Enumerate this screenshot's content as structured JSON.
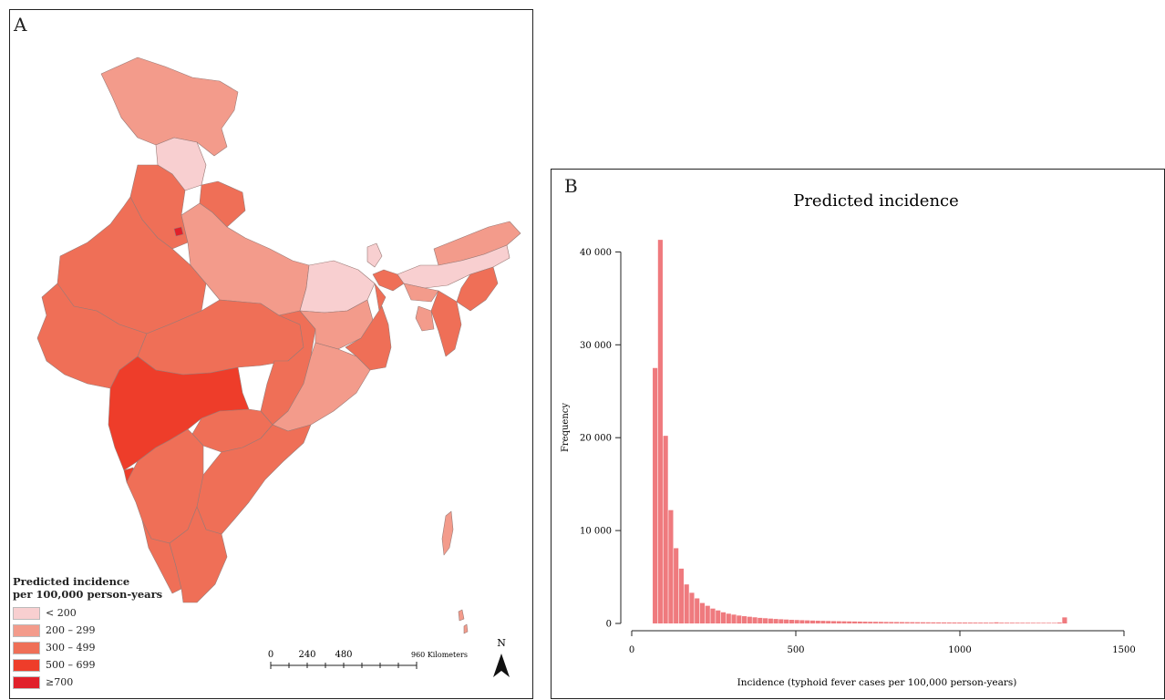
{
  "panel_a": {
    "letter": "A",
    "legend": {
      "title_line1": "Predicted incidence",
      "title_line2": "per 100,000 person-years",
      "items": [
        {
          "label": "< 200",
          "color": "#f8cfd0"
        },
        {
          "label": "200 – 299",
          "color": "#f39b8b"
        },
        {
          "label": "300 – 499",
          "color": "#ef6f57"
        },
        {
          "label": "500 – 699",
          "color": "#ee3d2a"
        },
        {
          "label": "≥700",
          "color": "#e1202a"
        }
      ]
    },
    "scale": {
      "ticks": [
        "0",
        "240",
        "480",
        "960 Kilometers"
      ]
    },
    "north_label": "N"
  },
  "panel_b": {
    "letter": "B"
  },
  "chart_data": {
    "type": "bar",
    "title": "Predicted incidence",
    "xlabel": "Incidence (typhoid fever cases per 100,000 person-years)",
    "ylabel": "Frequency",
    "xlim": [
      0,
      1500
    ],
    "ylim": [
      0,
      42000
    ],
    "x_ticks": [
      0,
      500,
      1000,
      1500
    ],
    "y_ticks": [
      0,
      10000,
      20000,
      30000,
      40000
    ],
    "y_tick_labels": [
      "0",
      "10 000",
      "20 000",
      "30 000",
      "40 000"
    ],
    "bar_color": "#ef7a7e",
    "bin_width": 16,
    "bin_starts": [
      64,
      80,
      96,
      112,
      128,
      144,
      160,
      176,
      192,
      208,
      224,
      240,
      256,
      272,
      288,
      304,
      320,
      336,
      352,
      368,
      384,
      400,
      416,
      432,
      448,
      464,
      480,
      496,
      512,
      528,
      544,
      560,
      576,
      592,
      608,
      624,
      640,
      656,
      672,
      688,
      704,
      720,
      736,
      752,
      768,
      784,
      800,
      816,
      832,
      848,
      864,
      880,
      896,
      912,
      928,
      944,
      960,
      976,
      992,
      1008,
      1024,
      1040,
      1056,
      1072,
      1088,
      1104,
      1120,
      1136,
      1152,
      1168,
      1184,
      1200,
      1216,
      1232,
      1248,
      1264,
      1280,
      1296,
      1312
    ],
    "values": [
      27500,
      41300,
      20200,
      12200,
      8100,
      5900,
      4200,
      3300,
      2700,
      2200,
      1900,
      1600,
      1400,
      1200,
      1050,
      950,
      850,
      780,
      720,
      660,
      600,
      560,
      520,
      480,
      450,
      420,
      390,
      370,
      350,
      330,
      310,
      295,
      280,
      265,
      250,
      240,
      230,
      220,
      210,
      200,
      190,
      180,
      175,
      170,
      160,
      155,
      150,
      145,
      140,
      135,
      130,
      125,
      120,
      115,
      112,
      108,
      105,
      102,
      100,
      98,
      95,
      92,
      90,
      88,
      85,
      120,
      82,
      80,
      78,
      76,
      74,
      72,
      70,
      68,
      66,
      64,
      62,
      100,
      650
    ]
  }
}
